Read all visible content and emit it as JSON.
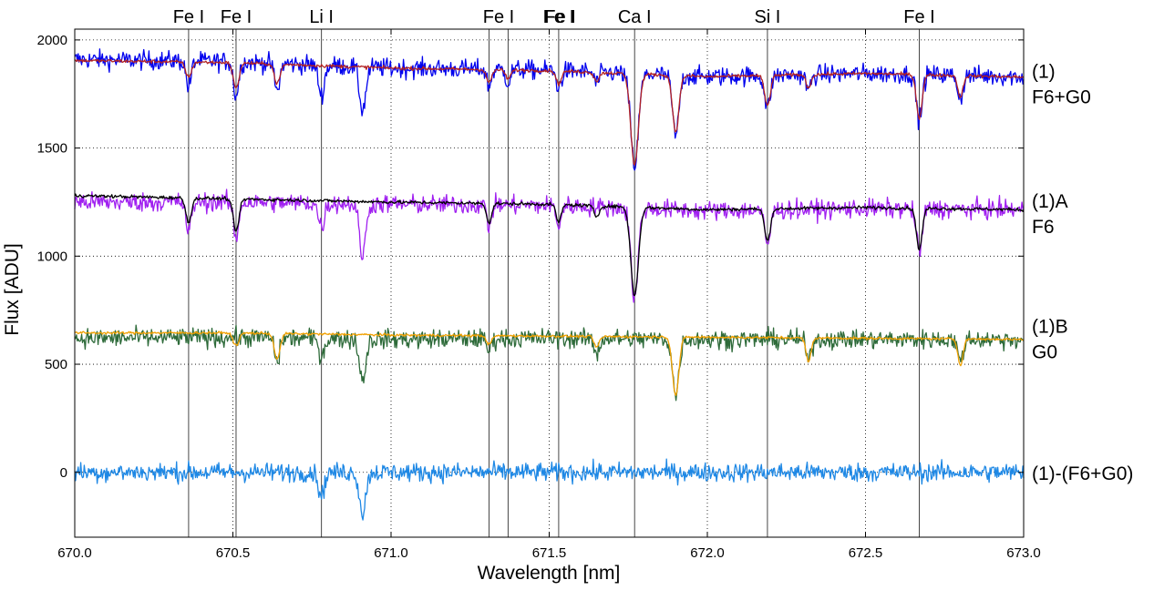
{
  "chart_data": {
    "type": "line",
    "title": "",
    "xlabel": "Wavelength [nm]",
    "ylabel": "Flux [ADU]",
    "xlim": [
      670.0,
      673.0
    ],
    "ylim": [
      -300,
      2050
    ],
    "xticks": [
      670.0,
      670.5,
      671.0,
      671.5,
      672.0,
      672.5,
      673.0
    ],
    "xtick_labels": [
      "670.0",
      "670.5",
      "671.0",
      "671.5",
      "672.0",
      "672.5",
      "673.0"
    ],
    "yticks": [
      0,
      500,
      1000,
      1500,
      2000
    ],
    "ytick_labels": [
      "0",
      "500",
      "1000",
      "1500",
      "2000"
    ],
    "grid": true,
    "line_markers": [
      {
        "label": "Fe I",
        "x": 670.36
      },
      {
        "label": "Fe I",
        "x": 670.51
      },
      {
        "label": "Li I",
        "x": 670.78
      },
      {
        "label": "Fe I",
        "x": 671.31
      },
      {
        "label": "Fe I",
        "x": 671.37
      },
      {
        "label": "Fe I",
        "x": 671.53
      },
      {
        "label": "Ca I",
        "x": 671.77
      },
      {
        "label": "Si I",
        "x": 672.19
      },
      {
        "label": "Fe I",
        "x": 672.67
      }
    ],
    "series_labels": [
      {
        "lines": [
          "(1)",
          "F6+G0"
        ],
        "y": 1800
      },
      {
        "lines": [
          "(1)A",
          "F6"
        ],
        "y": 1200
      },
      {
        "lines": [
          "(1)B",
          "G0"
        ],
        "y": 620
      },
      {
        "lines": [
          "(1)-(F6+G0)"
        ],
        "y": 0
      }
    ],
    "series": [
      {
        "role": "observed spectrum (1)",
        "color": "#0000ee",
        "continuum": [
          [
            670.0,
            1910
          ],
          [
            670.5,
            1900
          ],
          [
            671.0,
            1870
          ],
          [
            671.5,
            1860
          ],
          [
            672.0,
            1830
          ],
          [
            672.5,
            1845
          ],
          [
            673.0,
            1830
          ]
        ],
        "noise": 22,
        "lines": [
          [
            670.36,
            120,
            0.008
          ],
          [
            670.51,
            160,
            0.008
          ],
          [
            670.64,
            130,
            0.008
          ],
          [
            670.78,
            140,
            0.009
          ],
          [
            670.91,
            200,
            0.01
          ],
          [
            671.31,
            80,
            0.007
          ],
          [
            671.37,
            60,
            0.007
          ],
          [
            671.53,
            80,
            0.008
          ],
          [
            671.65,
            50,
            0.008
          ],
          [
            671.77,
            430,
            0.012
          ],
          [
            671.9,
            280,
            0.01
          ],
          [
            672.19,
            150,
            0.009
          ],
          [
            672.32,
            70,
            0.008
          ],
          [
            672.67,
            210,
            0.009
          ],
          [
            672.8,
            110,
            0.008
          ]
        ]
      },
      {
        "role": "model F6+G0",
        "color": "#b22222",
        "continuum": [
          [
            670.0,
            1905
          ],
          [
            670.5,
            1895
          ],
          [
            671.0,
            1870
          ],
          [
            671.5,
            1858
          ],
          [
            672.0,
            1830
          ],
          [
            672.5,
            1845
          ],
          [
            673.0,
            1828
          ]
        ],
        "noise": 4,
        "lines": [
          [
            670.36,
            70,
            0.009
          ],
          [
            670.51,
            120,
            0.009
          ],
          [
            670.64,
            90,
            0.009
          ],
          [
            671.31,
            60,
            0.008
          ],
          [
            671.37,
            40,
            0.008
          ],
          [
            671.53,
            60,
            0.008
          ],
          [
            671.65,
            40,
            0.008
          ],
          [
            671.77,
            420,
            0.012
          ],
          [
            671.9,
            260,
            0.01
          ],
          [
            672.19,
            140,
            0.009
          ],
          [
            672.32,
            60,
            0.008
          ],
          [
            672.67,
            200,
            0.009
          ],
          [
            672.8,
            100,
            0.008
          ]
        ]
      },
      {
        "role": "observed component (1)A",
        "color": "#a020f0",
        "continuum": [
          [
            670.0,
            1250
          ],
          [
            670.5,
            1250
          ],
          [
            671.0,
            1240
          ],
          [
            671.5,
            1235
          ],
          [
            672.0,
            1210
          ],
          [
            672.5,
            1220
          ],
          [
            673.0,
            1215
          ]
        ],
        "noise": 22,
        "lines": [
          [
            670.36,
            140,
            0.008
          ],
          [
            670.51,
            170,
            0.008
          ],
          [
            670.78,
            110,
            0.009
          ],
          [
            670.91,
            240,
            0.01
          ],
          [
            671.31,
            100,
            0.007
          ],
          [
            671.53,
            90,
            0.008
          ],
          [
            671.77,
            420,
            0.011
          ],
          [
            672.19,
            160,
            0.009
          ],
          [
            672.67,
            200,
            0.009
          ]
        ]
      },
      {
        "role": "model F6",
        "color": "#000000",
        "continuum": [
          [
            670.0,
            1280
          ],
          [
            670.5,
            1265
          ],
          [
            671.0,
            1250
          ],
          [
            671.5,
            1240
          ],
          [
            672.0,
            1215
          ],
          [
            672.5,
            1225
          ],
          [
            673.0,
            1215
          ]
        ],
        "noise": 4,
        "lines": [
          [
            670.36,
            110,
            0.009
          ],
          [
            670.51,
            150,
            0.009
          ],
          [
            671.31,
            90,
            0.008
          ],
          [
            671.53,
            80,
            0.008
          ],
          [
            671.65,
            50,
            0.008
          ],
          [
            671.77,
            410,
            0.012
          ],
          [
            672.19,
            150,
            0.009
          ],
          [
            672.67,
            190,
            0.009
          ]
        ]
      },
      {
        "role": "observed component (1)B",
        "color": "#2e6b3a",
        "continuum": [
          [
            670.0,
            620
          ],
          [
            670.5,
            625
          ],
          [
            671.0,
            615
          ],
          [
            671.5,
            620
          ],
          [
            672.0,
            615
          ],
          [
            672.5,
            615
          ],
          [
            673.0,
            615
          ]
        ],
        "noise": 22,
        "lines": [
          [
            670.64,
            110,
            0.008
          ],
          [
            670.78,
            80,
            0.009
          ],
          [
            670.91,
            190,
            0.01
          ],
          [
            671.31,
            60,
            0.007
          ],
          [
            671.65,
            70,
            0.008
          ],
          [
            671.9,
            260,
            0.01
          ],
          [
            672.32,
            100,
            0.008
          ],
          [
            672.8,
            110,
            0.008
          ]
        ]
      },
      {
        "role": "model G0",
        "color": "#f0a000",
        "continuum": [
          [
            670.0,
            645
          ],
          [
            670.5,
            645
          ],
          [
            671.0,
            635
          ],
          [
            671.5,
            630
          ],
          [
            672.0,
            625
          ],
          [
            672.5,
            620
          ],
          [
            673.0,
            615
          ]
        ],
        "noise": 3,
        "lines": [
          [
            670.51,
            60,
            0.009
          ],
          [
            670.64,
            120,
            0.009
          ],
          [
            671.31,
            40,
            0.008
          ],
          [
            671.65,
            50,
            0.008
          ],
          [
            671.9,
            270,
            0.01
          ],
          [
            672.32,
            110,
            0.008
          ],
          [
            672.8,
            120,
            0.008
          ]
        ]
      },
      {
        "role": "residual (1)-(F6+G0)",
        "color": "#1e88e5",
        "continuum": [
          [
            670.0,
            0
          ],
          [
            673.0,
            0
          ]
        ],
        "noise": 22,
        "lines": [
          [
            670.78,
            110,
            0.009
          ],
          [
            670.91,
            190,
            0.01
          ]
        ]
      }
    ]
  }
}
